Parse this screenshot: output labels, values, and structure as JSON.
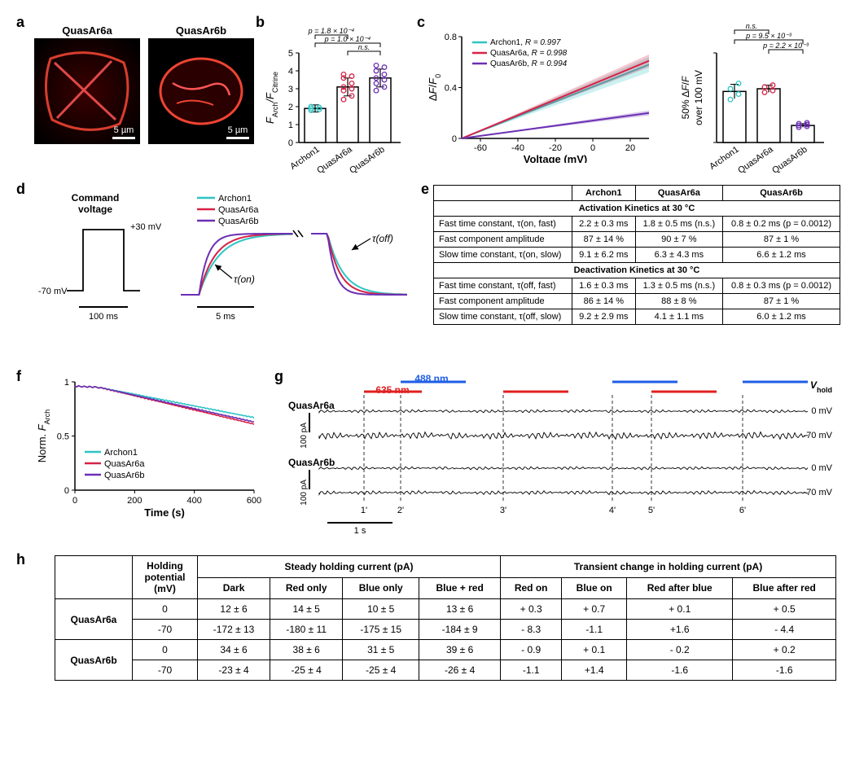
{
  "colors": {
    "archon1": "#2ec4c4",
    "quasar6a": "#d62246",
    "quasar6b": "#6b2fb3",
    "blue_light": "#1e5ee6",
    "red_light": "#e02020",
    "trace_black": "#000000",
    "bar_fill": "#ffffff",
    "bar_stroke": "#000000",
    "grid": "#000000"
  },
  "labels": {
    "a": "a",
    "b": "b",
    "c": "c",
    "d": "d",
    "e": "e",
    "f": "f",
    "g": "g",
    "h": "h"
  },
  "panel_a": {
    "img1_title": "QuasAr6a",
    "img2_title": "QuasAr6b",
    "scalebar_text": "5 µm"
  },
  "panel_b": {
    "ylabel": "F_Arch/F_Citrine",
    "categories": [
      "Archon1",
      "QuasAr6a",
      "QuasAr6b"
    ],
    "values": [
      1.9,
      3.1,
      3.6
    ],
    "errors": [
      0.2,
      0.5,
      0.5
    ],
    "scatter": [
      [
        1.8,
        1.85,
        1.9,
        1.95,
        2.0
      ],
      [
        2.4,
        2.6,
        2.9,
        3.0,
        3.1,
        3.3,
        3.6,
        3.7,
        3.8
      ],
      [
        2.9,
        3.1,
        3.3,
        3.5,
        3.6,
        3.8,
        4.0,
        4.2,
        4.3
      ]
    ],
    "ylim": [
      0,
      5
    ],
    "ytick_step": 1,
    "pvals": [
      {
        "from": 0,
        "to": 1,
        "text": "p = 1.8 × 10⁻⁴"
      },
      {
        "from": 0,
        "to": 2,
        "text": "p = 1.0 × 10⁻⁴"
      },
      {
        "from": 1,
        "to": 2,
        "text": "n.s."
      }
    ]
  },
  "panel_c": {
    "xlabel": "Voltage (mV)",
    "ylabel": "ΔF/F₀",
    "xlim": [
      -70,
      30
    ],
    "ylim": [
      0,
      0.8
    ],
    "xticks": [
      -60,
      -40,
      -20,
      0,
      20
    ],
    "yticks": [
      0,
      0.4,
      0.8
    ],
    "legend": [
      {
        "name": "Archon1",
        "R": "R = 0.997",
        "color": "#2ec4c4"
      },
      {
        "name": "QuasAr6a",
        "R": "R = 0.998",
        "color": "#d62246"
      },
      {
        "name": "QuasAr6b",
        "R": "R = 0.994",
        "color": "#6b2fb3"
      }
    ],
    "lines": {
      "archon1": [
        [
          -70,
          0.0
        ],
        [
          30,
          0.58
        ]
      ],
      "quasar6a": [
        [
          -70,
          0.0
        ],
        [
          30,
          0.61
        ]
      ],
      "quasar6b": [
        [
          -70,
          0.0
        ],
        [
          30,
          0.2
        ]
      ]
    }
  },
  "panel_c_bar": {
    "ylabel": "50% ΔF/F\nover 100 mV",
    "categories": [
      "Archon1",
      "QuasAr6a",
      "QuasAr6b"
    ],
    "values": [
      0.57,
      0.6,
      0.19
    ],
    "errors": [
      0.08,
      0.04,
      0.02
    ],
    "scatter": [
      [
        0.48,
        0.54,
        0.6,
        0.66
      ],
      [
        0.56,
        0.58,
        0.62,
        0.64
      ],
      [
        0.17,
        0.18,
        0.19,
        0.2,
        0.21,
        0.22
      ]
    ],
    "ylim": [
      0,
      1
    ],
    "pvals": [
      {
        "from": 0,
        "to": 1,
        "text": "n.s."
      },
      {
        "from": 0,
        "to": 2,
        "text": "p = 9.5 × 10⁻³"
      },
      {
        "from": 1,
        "to": 2,
        "text": "p = 2.2 × 10⁻³"
      }
    ]
  },
  "panel_d": {
    "cmd_label": "Command\nvoltage",
    "levels": [
      "+30 mV",
      "-70 mV"
    ],
    "scale_time_cmd": "100 ms",
    "scale_time_trace": "5 ms",
    "legend": [
      "Archon1",
      "QuasAr6a",
      "QuasAr6b"
    ],
    "tau_on": "τ(on)",
    "tau_off": "τ(off)"
  },
  "panel_e": {
    "head": [
      "",
      "Archon1",
      "QuasAr6a",
      "QuasAr6b"
    ],
    "sect1": "Activation Kinetics at 30 °C",
    "rows1": [
      [
        "Fast time constant, τ(on, fast)",
        "2.2 ± 0.3 ms",
        "1.8 ± 0.5 ms (n.s.)",
        "0.8 ± 0.2 ms (p = 0.0012)"
      ],
      [
        "Fast component amplitude",
        "87 ± 14 %",
        "90 ± 7 %",
        "87 ± 1 %"
      ],
      [
        "Slow time constant, τ(on, slow)",
        "9.1 ± 6.2 ms",
        "6.3 ± 4.3 ms",
        "6.6 ± 1.2 ms"
      ]
    ],
    "sect2": "Deactivation Kinetics at 30 °C",
    "rows2": [
      [
        "Fast time constant, τ(off, fast)",
        "1.6 ± 0.3 ms",
        "1.3 ± 0.5 ms (n.s.)",
        "0.8 ± 0.3 ms (p = 0.0012)"
      ],
      [
        "Fast component amplitude",
        "86 ± 14 %",
        "88 ± 8 %",
        "87 ± 1 %"
      ],
      [
        "Slow time constant, τ(off, slow)",
        "9.2 ± 2.9 ms",
        "4.1 ± 1.1 ms",
        "6.0 ± 1.2 ms"
      ]
    ]
  },
  "panel_f": {
    "xlabel": "Time (s)",
    "ylabel": "Norm. F_Arch",
    "xlim": [
      0,
      600
    ],
    "ylim": [
      0,
      1.0
    ],
    "xticks": [
      0,
      200,
      400,
      600
    ],
    "yticks": [
      0,
      0.5,
      1.0
    ],
    "legend": [
      "Archon1",
      "QuasAr6a",
      "QuasAr6b"
    ]
  },
  "panel_g": {
    "laser488": "488 nm",
    "laser635": "635 nm",
    "names": [
      "QuasAr6a",
      "QuasAr6b"
    ],
    "vhold_label": "V_hold",
    "vhold_values": [
      "0 mV",
      "-70 mV",
      "0 mV",
      "-70 mV"
    ],
    "scale_current": "100 pA",
    "scale_time": "1 s",
    "time_markers": [
      "1'",
      "2'",
      "3'",
      "4'",
      "5'",
      "6'"
    ]
  },
  "panel_h": {
    "head_row1": [
      "",
      "Holding\npotential\n(mV)",
      "Steady holding current (pA)",
      "Transient change in holding current (pA)"
    ],
    "head_row2": [
      "Dark",
      "Red only",
      "Blue only",
      "Blue + red",
      "Red on",
      "Blue on",
      "Red after blue",
      "Blue after red"
    ],
    "rows": [
      {
        "name": "QuasAr6a",
        "hp": "0",
        "s": [
          "12 ± 6",
          "14 ± 5",
          "10 ± 5",
          "13 ± 6"
        ],
        "t": [
          "+ 0.3",
          "+ 0.7",
          "+ 0.1",
          "+ 0.5"
        ]
      },
      {
        "name": "",
        "hp": "-70",
        "s": [
          "-172 ± 13",
          "-180 ± 11",
          "-175 ± 15",
          "-184 ± 9"
        ],
        "t": [
          "- 8.3",
          "-1.1",
          "+1.6",
          "- 4.4"
        ]
      },
      {
        "name": "QuasAr6b",
        "hp": "0",
        "s": [
          "34 ± 6",
          "38 ± 6",
          "31 ± 5",
          "39 ± 6"
        ],
        "t": [
          "- 0.9",
          "+ 0.1",
          "- 0.2",
          "+ 0.2"
        ]
      },
      {
        "name": "",
        "hp": "-70",
        "s": [
          "-23 ± 4",
          "-25 ± 4",
          "-25 ± 4",
          "-26 ± 4"
        ],
        "t": [
          "-1.1",
          "+1.4",
          "-1.6",
          "-1.6"
        ]
      }
    ]
  }
}
